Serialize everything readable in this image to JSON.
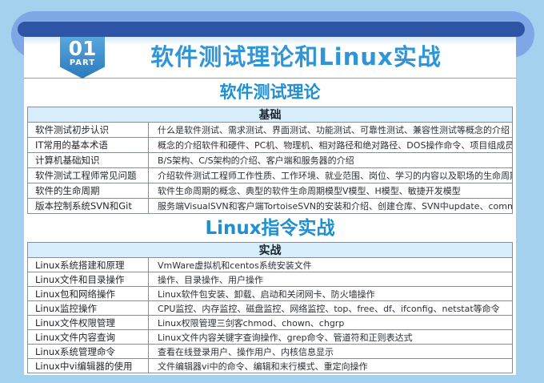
{
  "page": {
    "badge": {
      "number": "01",
      "label": "PART"
    },
    "main_title": "软件测试理论和Linux实战"
  },
  "colors": {
    "page_background": "#a4d1ed",
    "ribbon_outer_blue": "#7ea7e6",
    "ribbon_bar_dark_blue": "#2e54a6",
    "badge_blue": "#3f90cf",
    "title_blue": "#2e96d8",
    "section_heading_blue": "#1e8fd2",
    "table_header_bg": "#d8edfb",
    "table_border_gray": "#878f96"
  },
  "sections": [
    {
      "heading": "软件测试理论",
      "table_header": "基础",
      "rows": [
        {
          "topic": "软件测试初步认识",
          "desc": "什么是软件测试、需求测试、界面测试、功能测试、可靠性测试、兼容性测试等概念的介绍"
        },
        {
          "topic": "IT常用的基本术语",
          "desc": "概念的介绍软件和硬件、PC机、物理机、相对路径和绝对路径、DOS操作命令、项目组成员详细介绍"
        },
        {
          "topic": "计算机基础知识",
          "desc": "B/S架构、C/S架构的介绍、客户端和服务器的介绍"
        },
        {
          "topic": "软件测试工程师常见问题",
          "desc": "介绍软件测试工程师工作性质、工作环境、就业范围、岗位、学习的内容以及职场的生命周期"
        },
        {
          "topic": "软件的生命周期",
          "desc": "软件生命周期的概念、典型的软件生命周期模型V模型、H模型、敏捷开发模型"
        },
        {
          "topic": "版本控制系统SVN和Git",
          "desc": "服务端VisualSVN和客户端TortoiseSVN的安装和介绍、创建仓库、SVN中update、commit等操作"
        }
      ]
    },
    {
      "heading": "Linux指令实战",
      "table_header": "实战",
      "rows": [
        {
          "topic": "Linux系统搭建和原理",
          "desc": "VmWare虚拟机和centos系统安装文件"
        },
        {
          "topic": "Linux文件和目录操作",
          "desc": "操作、目录操作、用户操作"
        },
        {
          "topic": "Linux包和网络操作",
          "desc": "Linux软件包安装、卸载、启动和关闭网卡、防火墙操作"
        },
        {
          "topic": "Linux监控操作",
          "desc": "CPU监控、内存监控、磁盘监控、网络监控、top、free、df、ifconfig、netstat等命令"
        },
        {
          "topic": "Linux文件权限管理",
          "desc": "Linux权限管理三剑客chmod、chown、chgrp"
        },
        {
          "topic": "Linux文件内容查询",
          "desc": "Linux文件内容关键字查询操作、grep命令、管道符和正则表达式"
        },
        {
          "topic": "Linux系统管理命令",
          "desc": "查看在线登录用户、操作用户、内核信息显示"
        },
        {
          "topic": "Linux中vi编辑器的使用",
          "desc": "文件编辑器vi中的命令、编辑和末行模式、重定向操作"
        }
      ]
    }
  ]
}
